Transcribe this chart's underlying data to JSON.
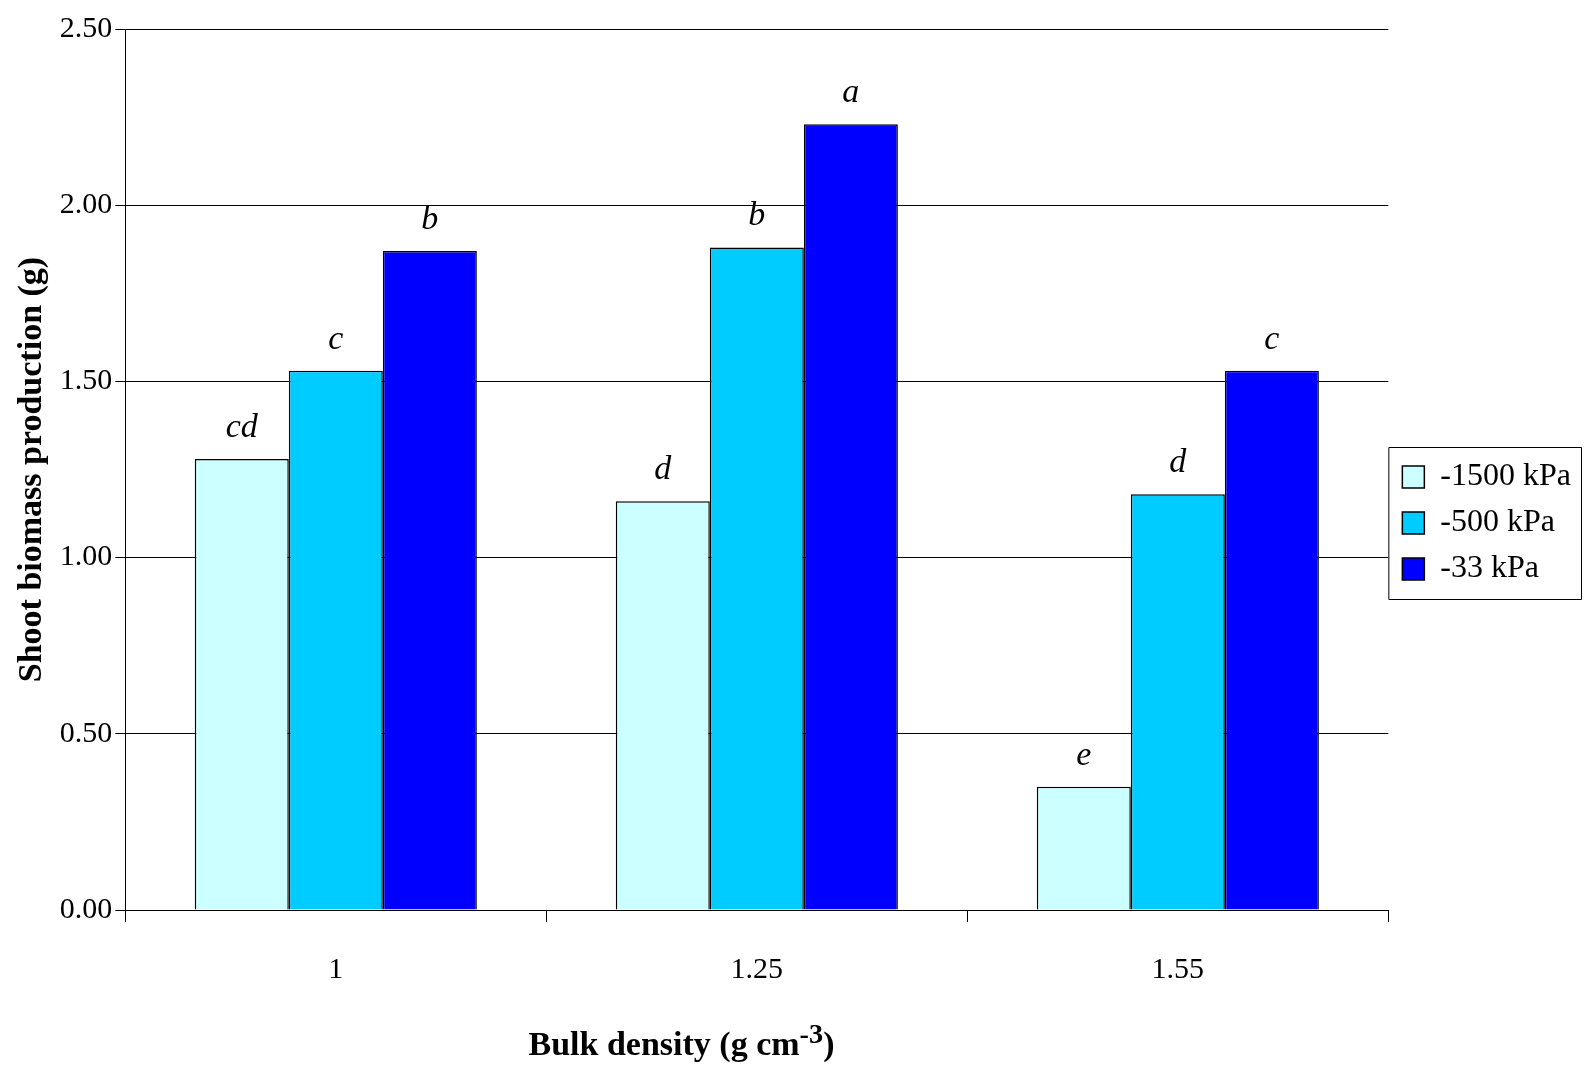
{
  "chart_data": {
    "type": "bar",
    "xlabel": "Bulk density (g cm$^{-3}$)",
    "ylabel": "Shoot biomass production (g)",
    "categories": [
      "1",
      "1.25",
      "1.55"
    ],
    "series": [
      {
        "name": "-1500 kPa",
        "color": "#ccffff",
        "values": [
          1.28,
          1.16,
          0.35
        ],
        "value_labels": [
          "cd",
          "d",
          "e"
        ]
      },
      {
        "name": "-500 kPa",
        "color": "#00ccff",
        "values": [
          1.53,
          1.88,
          1.18
        ],
        "value_labels": [
          "c",
          "b",
          "d"
        ]
      },
      {
        "name": "-33 kPa",
        "color": "#0000ff",
        "values": [
          1.87,
          2.23,
          1.53
        ],
        "value_labels": [
          "b",
          "a",
          "c"
        ]
      }
    ],
    "ylim": [
      0,
      2.5
    ],
    "yticks": [
      {
        "value": 0,
        "label": "0.00"
      },
      {
        "value": 0.5,
        "label": "0.50"
      },
      {
        "value": 1,
        "label": "1.00"
      },
      {
        "value": 1.5,
        "label": "1.50"
      },
      {
        "value": 2,
        "label": "2.00"
      },
      {
        "value": 2.5,
        "label": "2.50"
      }
    ],
    "grid": "y",
    "legend": "right"
  }
}
